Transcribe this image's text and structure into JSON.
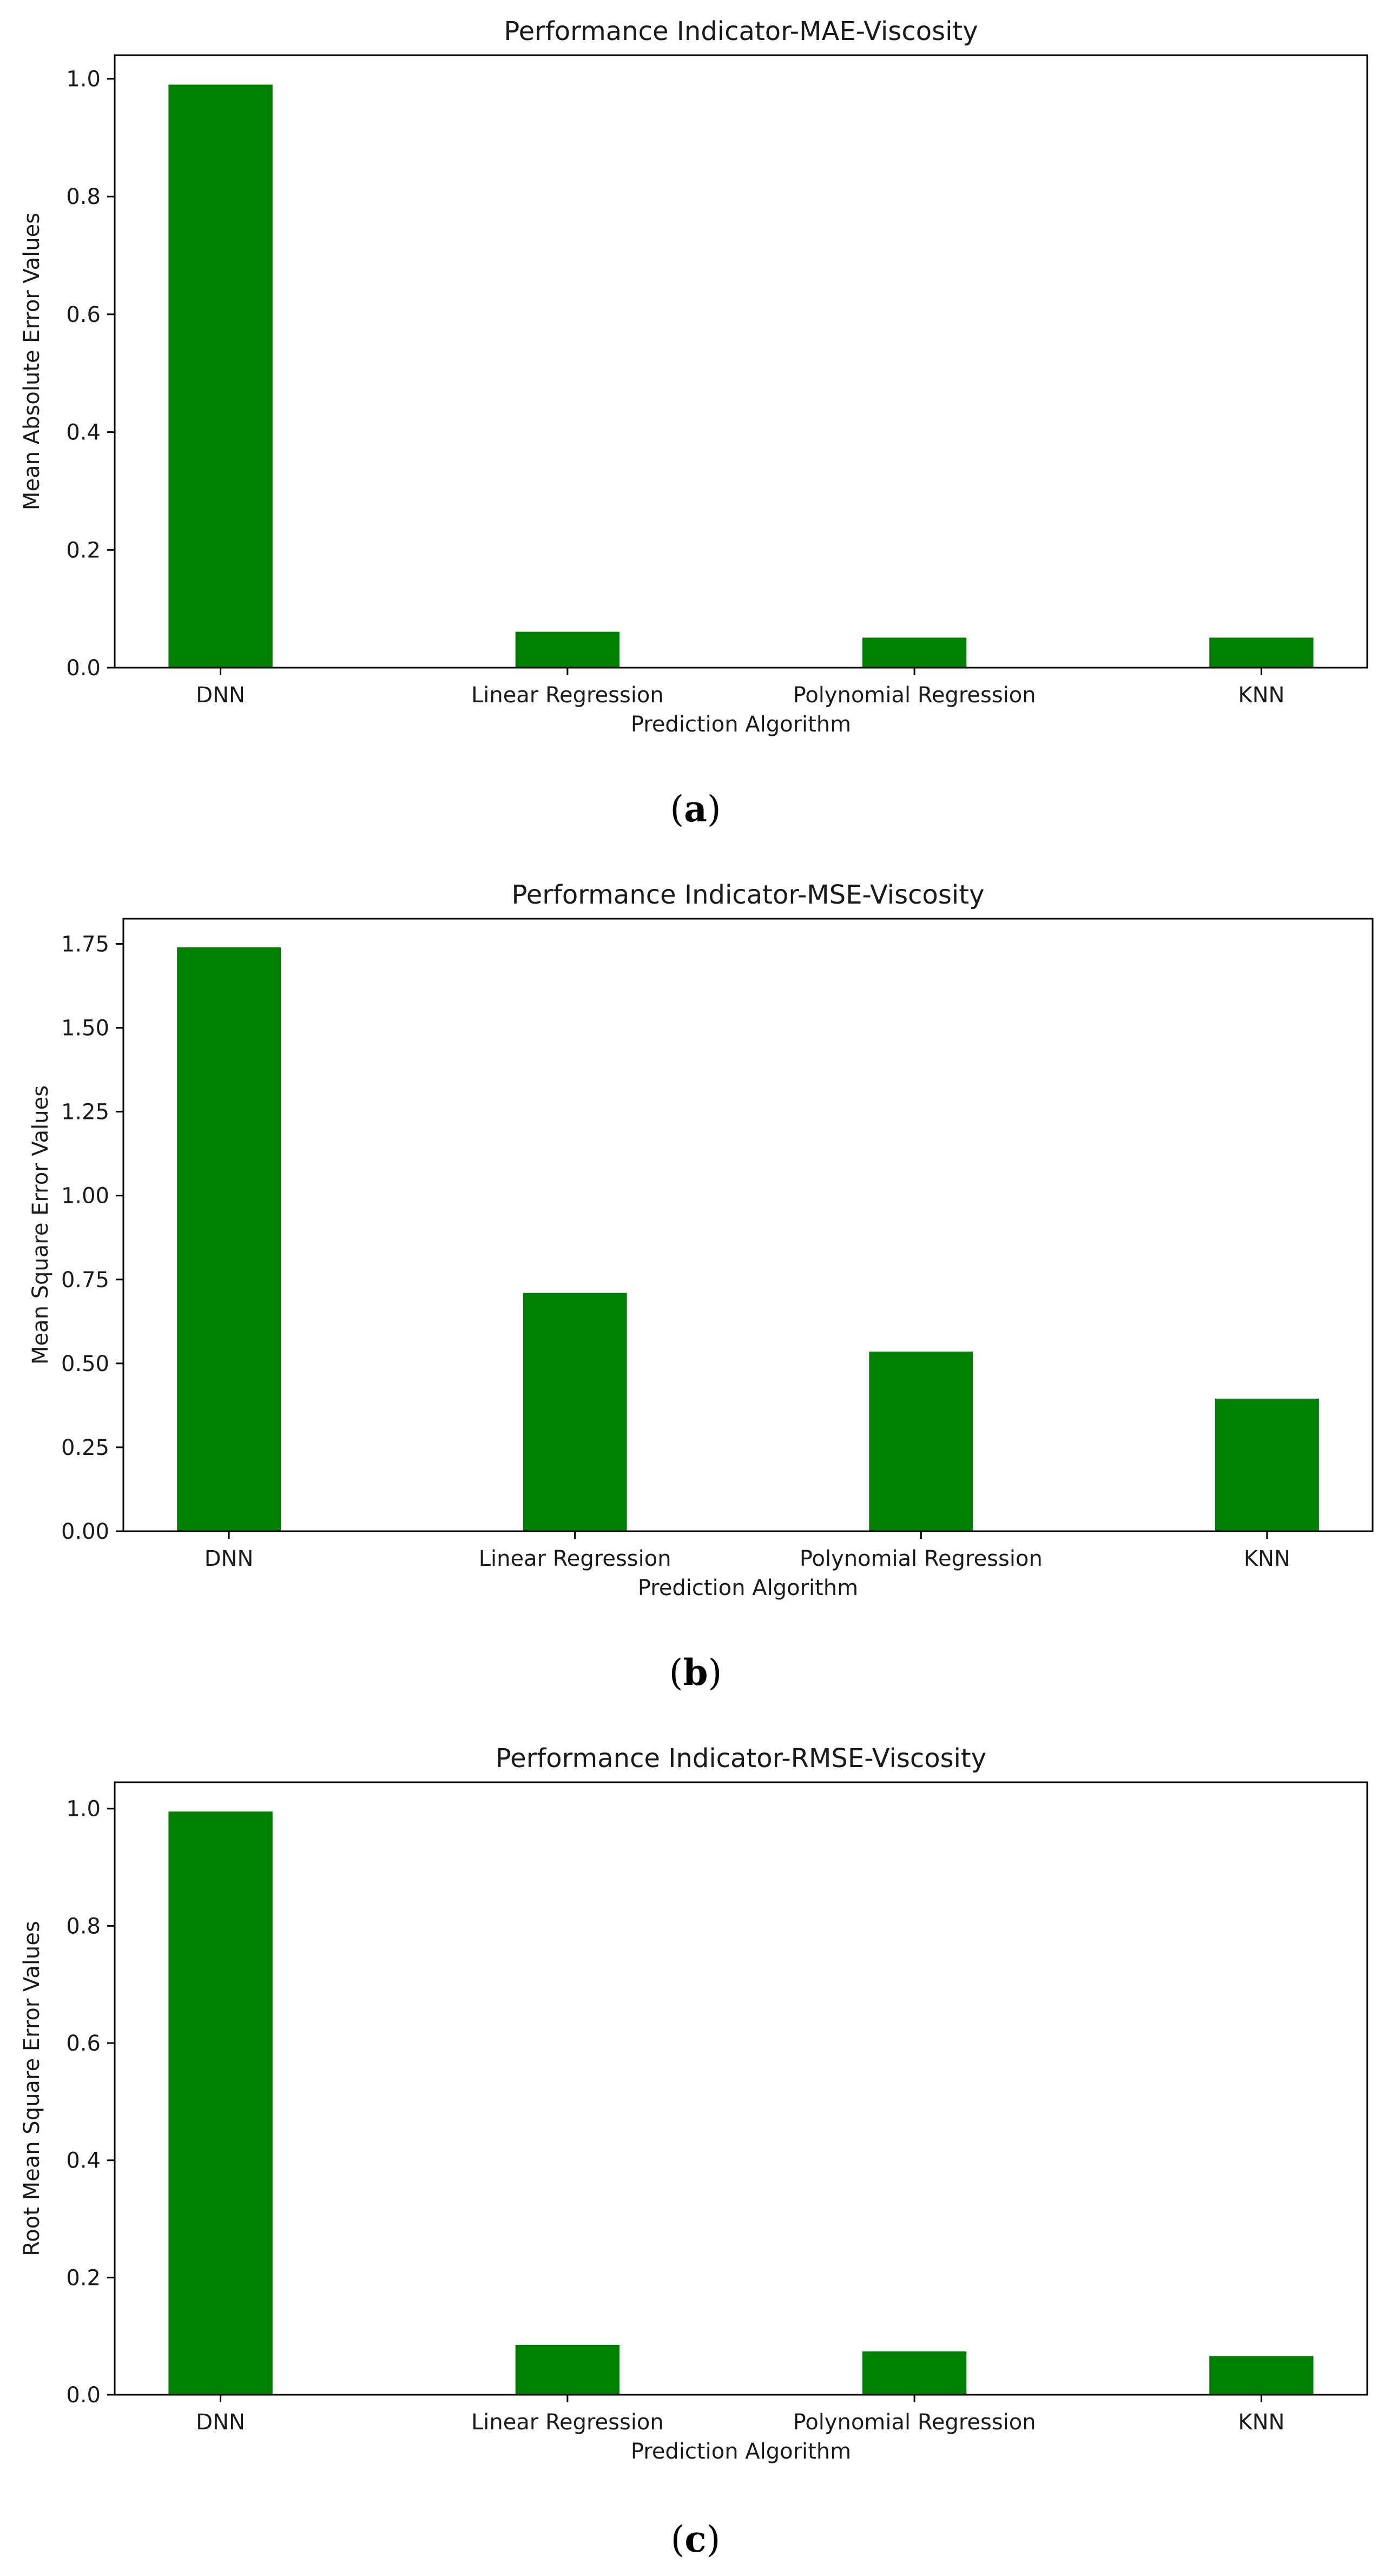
{
  "figure": {
    "captions": [
      "a",
      "b",
      "c"
    ]
  },
  "colors": {
    "bar": "#008000",
    "axis": "#000000",
    "text": "#1a1a1a"
  },
  "chart_data": [
    {
      "type": "bar",
      "title": "Performance Indicator-MAE-Viscosity",
      "xlabel": "Prediction Algorithm",
      "ylabel": "Mean Absolute Error Values",
      "categories": [
        "DNN",
        "Linear Regression",
        "Polynomial Regression",
        "KNN"
      ],
      "values": [
        0.99,
        0.061,
        0.051,
        0.051
      ],
      "ylim": [
        0,
        1.04
      ],
      "yticks": [
        0.0,
        0.2,
        0.4,
        0.6,
        0.8,
        1.0
      ],
      "ytick_labels": [
        "0.0",
        "0.2",
        "0.4",
        "0.6",
        "0.8",
        "1.0"
      ],
      "grid": false
    },
    {
      "type": "bar",
      "title": "Performance Indicator-MSE-Viscosity",
      "xlabel": "Prediction Algorithm",
      "ylabel": "Mean Square Error Values",
      "categories": [
        "DNN",
        "Linear Regression",
        "Polynomial Regression",
        "KNN"
      ],
      "values": [
        1.74,
        0.71,
        0.535,
        0.395
      ],
      "ylim": [
        0,
        1.825
      ],
      "yticks": [
        0.0,
        0.25,
        0.5,
        0.75,
        1.0,
        1.25,
        1.5,
        1.75
      ],
      "ytick_labels": [
        "0.00",
        "0.25",
        "0.50",
        "0.75",
        "1.00",
        "1.25",
        "1.50",
        "1.75"
      ],
      "grid": false
    },
    {
      "type": "bar",
      "title": "Performance Indicator-RMSE-Viscosity",
      "xlabel": "Prediction Algorithm",
      "ylabel": "Root Mean Square Error Values",
      "categories": [
        "DNN",
        "Linear Regression",
        "Polynomial Regression",
        "KNN"
      ],
      "values": [
        0.995,
        0.085,
        0.074,
        0.066
      ],
      "ylim": [
        0,
        1.045
      ],
      "yticks": [
        0.0,
        0.2,
        0.4,
        0.6,
        0.8,
        1.0
      ],
      "ytick_labels": [
        "0.0",
        "0.2",
        "0.4",
        "0.6",
        "0.8",
        "1.0"
      ],
      "grid": false
    }
  ]
}
